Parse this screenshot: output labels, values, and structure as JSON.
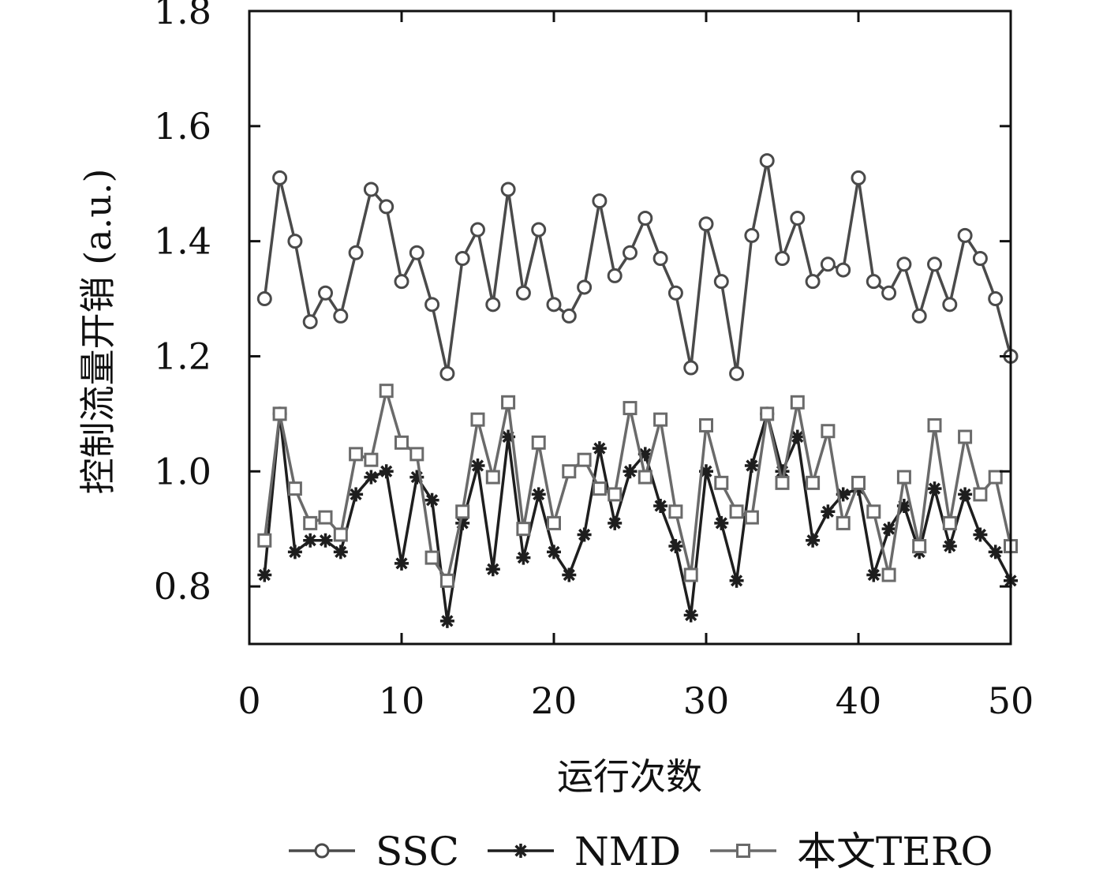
{
  "chart_data": {
    "type": "line",
    "xlabel": "运行次数",
    "ylabel": "控制流量开销 (a.u.)",
    "xlim": [
      0,
      50
    ],
    "ylim": [
      0.7,
      1.8
    ],
    "xticks": [
      0,
      10,
      20,
      30,
      40,
      50
    ],
    "yticks": [
      0.8,
      1.0,
      1.2,
      1.4,
      1.6,
      1.8
    ],
    "xtick_labels": [
      "0",
      "10",
      "20",
      "30",
      "40",
      "50"
    ],
    "ytick_labels": [
      "0.8",
      "1.0",
      "1.2",
      "1.4",
      "1.6",
      "1.8"
    ],
    "grid": false,
    "legend_position": "bottom",
    "x": [
      1,
      2,
      3,
      4,
      5,
      6,
      7,
      8,
      9,
      10,
      11,
      12,
      13,
      14,
      15,
      16,
      17,
      18,
      19,
      20,
      21,
      22,
      23,
      24,
      25,
      26,
      27,
      28,
      29,
      30,
      31,
      32,
      33,
      34,
      35,
      36,
      37,
      38,
      39,
      40,
      41,
      42,
      43,
      44,
      45,
      46,
      47,
      48,
      49,
      50
    ],
    "series": [
      {
        "name": "SSC",
        "marker": "circle",
        "color": "#4a4a4a",
        "values": [
          1.3,
          1.51,
          1.4,
          1.26,
          1.31,
          1.27,
          1.38,
          1.49,
          1.46,
          1.33,
          1.38,
          1.29,
          1.17,
          1.37,
          1.42,
          1.29,
          1.49,
          1.31,
          1.42,
          1.29,
          1.27,
          1.32,
          1.47,
          1.34,
          1.38,
          1.44,
          1.37,
          1.31,
          1.18,
          1.43,
          1.33,
          1.17,
          1.41,
          1.54,
          1.37,
          1.44,
          1.33,
          1.36,
          1.35,
          1.51,
          1.33,
          1.31,
          1.36,
          1.27,
          1.36,
          1.29,
          1.41,
          1.37,
          1.3,
          1.2
        ]
      },
      {
        "name": "NMD",
        "marker": "star",
        "color": "#1e1e1e",
        "values": [
          0.82,
          1.1,
          0.86,
          0.88,
          0.88,
          0.86,
          0.96,
          0.99,
          1.0,
          0.84,
          0.99,
          0.95,
          0.74,
          0.91,
          1.01,
          0.83,
          1.06,
          0.85,
          0.96,
          0.86,
          0.82,
          0.89,
          1.04,
          0.91,
          1.0,
          1.03,
          0.94,
          0.87,
          0.75,
          1.0,
          0.91,
          0.81,
          1.01,
          1.1,
          1.0,
          1.06,
          0.88,
          0.93,
          0.96,
          0.97,
          0.82,
          0.9,
          0.94,
          0.86,
          0.97,
          0.87,
          0.96,
          0.89,
          0.86,
          0.81
        ]
      },
      {
        "name": "本文TERO",
        "marker": "square",
        "color": "#6a6a6a",
        "values": [
          0.88,
          1.1,
          0.97,
          0.91,
          0.92,
          0.89,
          1.03,
          1.02,
          1.14,
          1.05,
          1.03,
          0.85,
          0.81,
          0.93,
          1.09,
          0.99,
          1.12,
          0.9,
          1.05,
          0.91,
          1.0,
          1.02,
          0.97,
          0.96,
          1.11,
          0.99,
          1.09,
          0.93,
          0.82,
          1.08,
          0.98,
          0.93,
          0.92,
          1.1,
          0.98,
          1.12,
          0.98,
          1.07,
          0.91,
          0.98,
          0.93,
          0.82,
          0.99,
          0.87,
          1.08,
          0.91,
          1.06,
          0.96,
          0.99,
          0.87
        ]
      }
    ]
  }
}
